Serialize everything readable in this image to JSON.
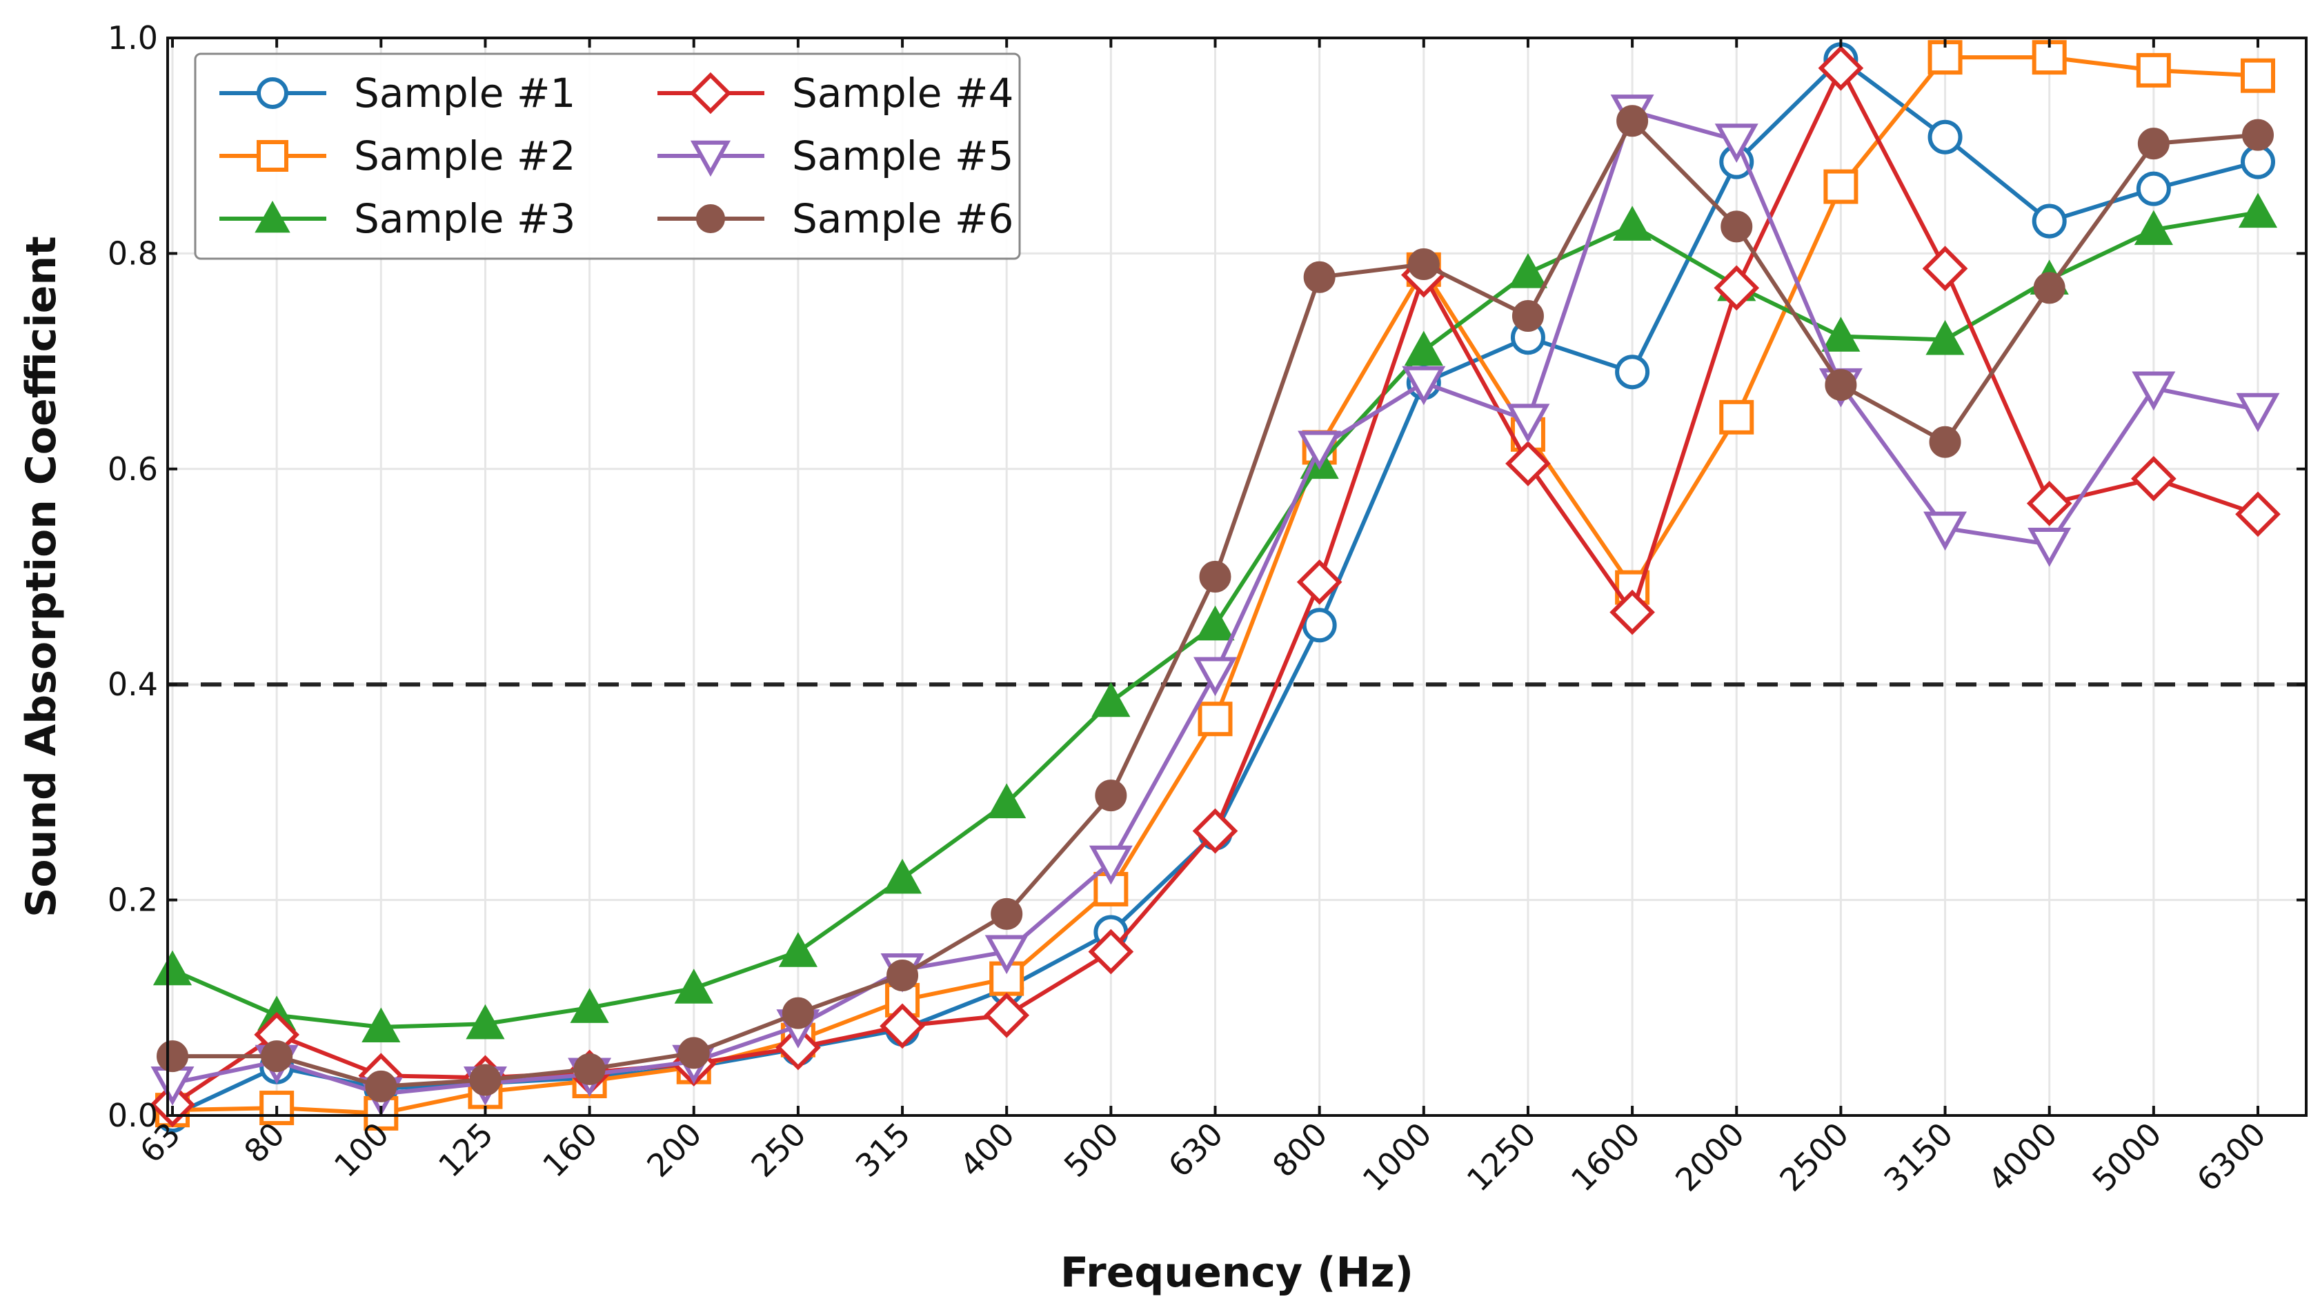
{
  "chart_data": {
    "type": "line",
    "title": "",
    "xlabel": "Frequency (Hz)",
    "ylabel": "Sound Absorption Coefficient",
    "ylim": [
      0.0,
      1.0
    ],
    "yticks": [
      "0.0",
      "0.2",
      "0.4",
      "0.6",
      "0.8",
      "1.0"
    ],
    "grid": true,
    "legend_position": "top-left",
    "legend_columns": 2,
    "reference_line": {
      "y": 0.4,
      "style": "dashed",
      "color": "#222222"
    },
    "categories": [
      "63",
      "80",
      "100",
      "125",
      "160",
      "200",
      "250",
      "315",
      "400",
      "500",
      "630",
      "800",
      "1000",
      "1250",
      "1600",
      "2000",
      "2500",
      "3150",
      "4000",
      "5000",
      "6300"
    ],
    "series": [
      {
        "name": "Sample #1",
        "color": "#1f77b4",
        "marker": "circle-open",
        "values": [
          0.0,
          0.045,
          0.025,
          0.03,
          0.035,
          0.045,
          0.062,
          0.08,
          0.118,
          0.17,
          0.262,
          0.455,
          0.68,
          0.722,
          0.69,
          0.885,
          0.98,
          0.908,
          0.83,
          0.86,
          0.885
        ]
      },
      {
        "name": "Sample #2",
        "color": "#ff7f0e",
        "marker": "square-open",
        "values": [
          0.005,
          0.007,
          0.002,
          0.022,
          0.032,
          0.045,
          0.07,
          0.107,
          0.127,
          0.21,
          0.368,
          0.62,
          0.785,
          0.632,
          0.49,
          0.648,
          0.862,
          0.982,
          0.982,
          0.97,
          0.965
        ]
      },
      {
        "name": "Sample #3",
        "color": "#2ca02c",
        "marker": "triangle-up-filled",
        "values": [
          0.135,
          0.093,
          0.082,
          0.085,
          0.1,
          0.118,
          0.152,
          0.22,
          0.29,
          0.384,
          0.455,
          0.605,
          0.71,
          0.782,
          0.826,
          0.77,
          0.723,
          0.72,
          0.776,
          0.822,
          0.838
        ]
      },
      {
        "name": "Sample #4",
        "color": "#d62728",
        "marker": "diamond-open",
        "values": [
          0.01,
          0.075,
          0.037,
          0.035,
          0.04,
          0.048,
          0.063,
          0.083,
          0.093,
          0.152,
          0.264,
          0.495,
          0.78,
          0.605,
          0.467,
          0.768,
          0.972,
          0.786,
          0.568,
          0.591,
          0.558
        ]
      },
      {
        "name": "Sample #5",
        "color": "#9467bd",
        "marker": "triangle-down-open",
        "values": [
          0.03,
          0.05,
          0.02,
          0.03,
          0.038,
          0.05,
          0.083,
          0.135,
          0.152,
          0.235,
          0.41,
          0.62,
          0.68,
          0.645,
          0.932,
          0.905,
          0.678,
          0.545,
          0.53,
          0.675,
          0.655
        ]
      },
      {
        "name": "Sample #6",
        "color": "#8c564b",
        "marker": "circle-filled",
        "values": [
          0.055,
          0.055,
          0.027,
          0.033,
          0.043,
          0.058,
          0.095,
          0.13,
          0.187,
          0.297,
          0.5,
          0.778,
          0.79,
          0.742,
          0.923,
          0.825,
          0.678,
          0.625,
          0.768,
          0.902,
          0.91
        ]
      }
    ]
  }
}
